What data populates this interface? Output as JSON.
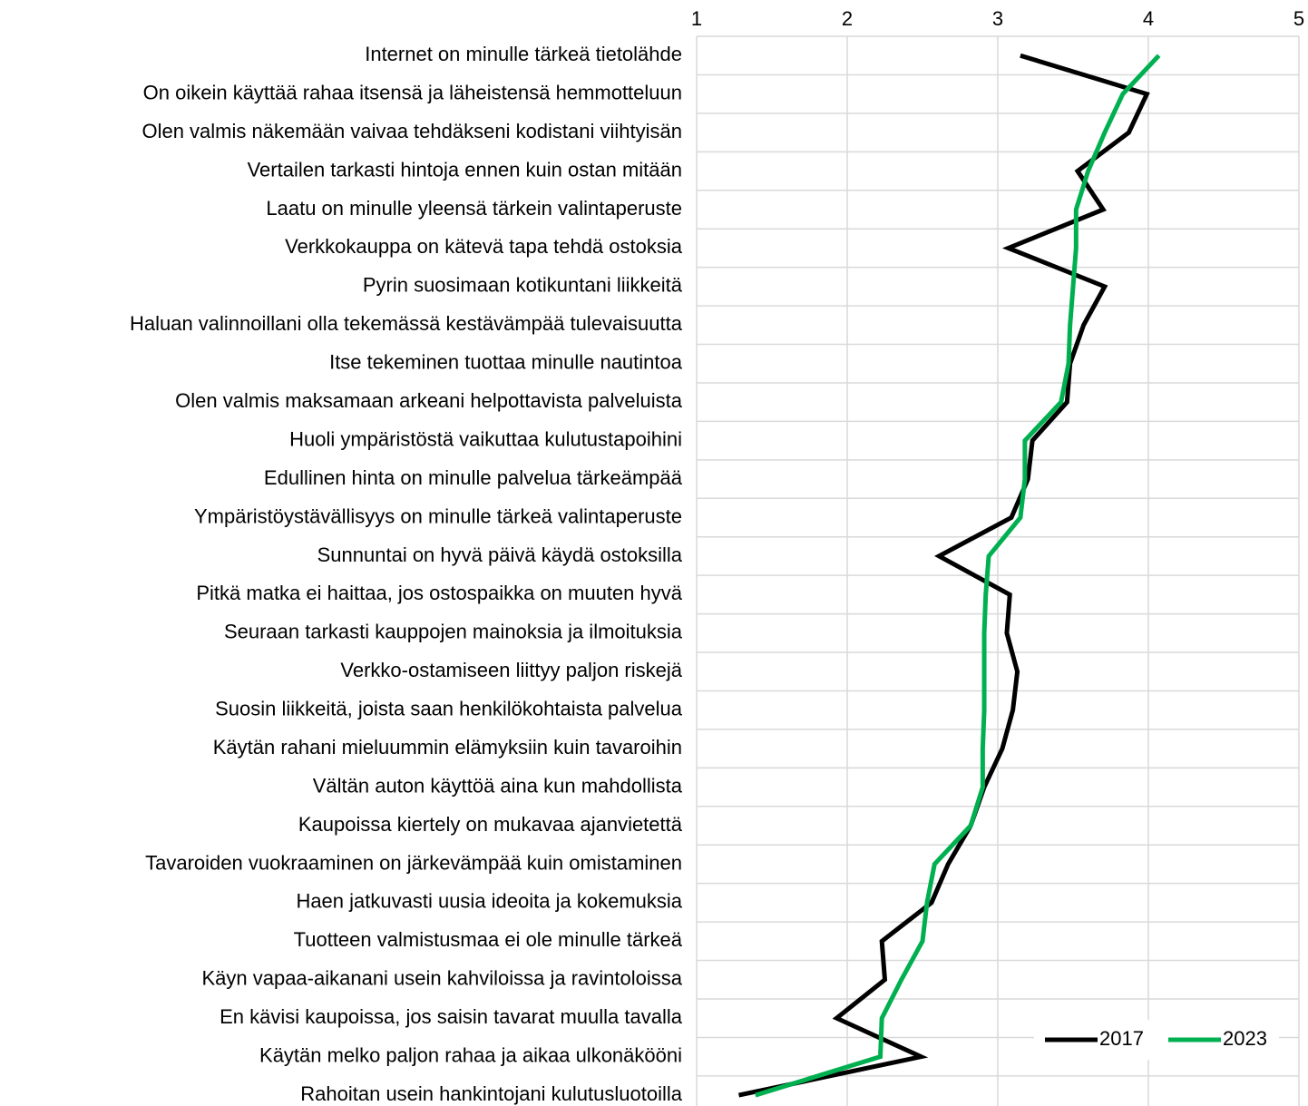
{
  "chart_data": {
    "type": "line",
    "orientation": "horizontal",
    "categories": [
      "Internet on minulle tärkeä tietolähde",
      "On oikein käyttää rahaa itsensä ja läheistensä hemmotteluun",
      "Olen valmis näkemään vaivaa tehdäkseni kodistani viihtyisän",
      "Vertailen tarkasti hintoja ennen kuin ostan mitään",
      "Laatu on minulle yleensä tärkein valintaperuste",
      "Verkkokauppa on kätevä tapa tehdä ostoksia",
      "Pyrin suosimaan kotikuntani liikkeitä",
      "Haluan valinnoillani olla tekemässä kestävämpää tulevaisuutta",
      "Itse tekeminen tuottaa minulle nautintoa",
      "Olen valmis maksamaan arkeani helpottavista palveluista",
      "Huoli ympäristöstä vaikuttaa kulutustapoihini",
      "Edullinen hinta on minulle palvelua tärkeämpää",
      "Ympäristöystävällisyys on minulle tärkeä valintaperuste",
      "Sunnuntai on hyvä päivä käydä ostoksilla",
      "Pitkä matka ei haittaa, jos ostospaikka on muuten hyvä",
      "Seuraan tarkasti kauppojen mainoksia ja ilmoituksia",
      "Verkko-ostamiseen liittyy paljon riskejä",
      "Suosin liikkeitä, joista saan henkilökohtaista palvelua",
      "Käytän rahani mieluummin elämyksiin kuin tavaroihin",
      "Vältän auton käyttöä aina kun mahdollista",
      "Kaupoissa kiertely on mukavaa ajanvietettä",
      "Tavaroiden vuokraaminen on järkevämpää kuin omistaminen",
      "Haen jatkuvasti uusia ideoita ja kokemuksia",
      "Tuotteen valmistusmaa ei ole minulle tärkeä",
      "Käyn vapaa-aikanani usein kahviloissa ja ravintoloissa",
      "En kävisi kaupoissa, jos saisin tavarat muulla tavalla",
      "Käytän melko paljon rahaa ja aikaa ulkonäkööni",
      "Rahoitan usein hankintojani kulutusluotoilla"
    ],
    "series": [
      {
        "name": "2017",
        "color": "#000000",
        "values": [
          3.15,
          3.99,
          3.87,
          3.53,
          3.7,
          3.07,
          3.71,
          3.57,
          3.48,
          3.46,
          3.23,
          3.2,
          3.09,
          2.61,
          3.08,
          3.06,
          3.13,
          3.1,
          3.03,
          2.91,
          2.82,
          2.67,
          2.56,
          2.23,
          2.25,
          1.93,
          2.49,
          1.28
        ]
      },
      {
        "name": "2023",
        "color": "#00b050",
        "values": [
          4.07,
          3.83,
          3.71,
          3.6,
          3.52,
          3.52,
          3.5,
          3.48,
          3.47,
          3.42,
          3.18,
          3.18,
          3.15,
          2.94,
          2.92,
          2.91,
          2.91,
          2.91,
          2.9,
          2.9,
          2.82,
          2.58,
          2.53,
          2.5,
          2.36,
          2.23,
          2.22,
          1.39
        ]
      }
    ],
    "xlim": [
      1,
      5
    ],
    "xticks": [
      1,
      2,
      3,
      4,
      5
    ],
    "grid": true,
    "legend": "lower right"
  }
}
